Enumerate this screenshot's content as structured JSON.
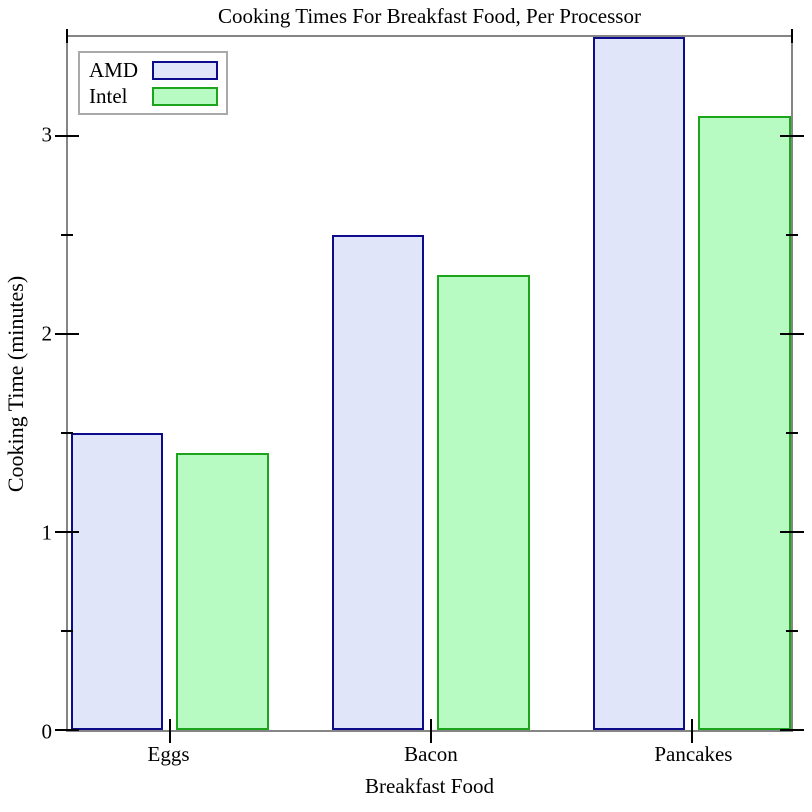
{
  "chart_data": {
    "type": "bar",
    "title": "Cooking Times For Breakfast Food, Per Processor",
    "xlabel": "Breakfast Food",
    "ylabel": "Cooking Time (minutes)",
    "categories": [
      "Eggs",
      "Bacon",
      "Pancakes"
    ],
    "series": [
      {
        "name": "AMD",
        "values": [
          1.5,
          2.5,
          3.5
        ],
        "fill": "#e0e5fa",
        "stroke": "#0b0b8b"
      },
      {
        "name": "Intel",
        "values": [
          1.4,
          2.3,
          3.1
        ],
        "fill": "#b7fbc3",
        "stroke": "#1ca41c"
      }
    ],
    "ylim": [
      0,
      3.5
    ],
    "y_major_ticks": [
      0,
      1,
      2,
      3
    ],
    "y_tick_labels": [
      "0",
      "1",
      "2",
      "3"
    ],
    "y_minor_ticks": [
      0.5,
      1.5,
      2.5
    ],
    "legend_position": "top-left",
    "grid": false
  },
  "style": {
    "axis_color": "#858585",
    "tick_color": "#000000",
    "text_color": "#000000",
    "legend_border_color": "#a9a9a9",
    "background": "#ffffff"
  }
}
